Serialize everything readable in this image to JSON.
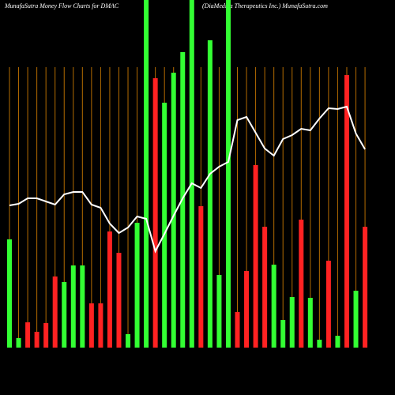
{
  "chart_data": {
    "type": "bar",
    "title": "MunafaSutra  Money Flow  Charts for DMAC",
    "subtitle": "(DiaMedica  Therapeutics Inc.) MunafaSutra.com",
    "categories": [
      null,
      null,
      null,
      null,
      null,
      null,
      null,
      null,
      null,
      null,
      null,
      null,
      null,
      null,
      null,
      null,
      null,
      null,
      null,
      null,
      null,
      null,
      null,
      null,
      null,
      null,
      null,
      null,
      null,
      null,
      null,
      null,
      null,
      null,
      null,
      null,
      null,
      null,
      null,
      null
    ],
    "series": [
      {
        "name": "Money Flow",
        "values": [
          137,
          12,
          32,
          20,
          31,
          90,
          83,
          104,
          104,
          56,
          56,
          147,
          120,
          17,
          158,
          440,
          341,
          310,
          348,
          374,
          440,
          179,
          389,
          92,
          440,
          45,
          97,
          231,
          153,
          105,
          35,
          64,
          162,
          63,
          10,
          110,
          15,
          345,
          72,
          153
        ],
        "colors": [
          "#33ff33",
          "#33ff33",
          "#ff2222",
          "#ff2222",
          "#ff2222",
          "#ff2222",
          "#33ff33",
          "#33ff33",
          "#33ff33",
          "#ff2222",
          "#ff2222",
          "#ff2222",
          "#ff2222",
          "#33ff33",
          "#33ff33",
          "#33ff33",
          "#ff2222",
          "#33ff33",
          "#33ff33",
          "#33ff33",
          "#33ff33",
          "#ff2222",
          "#33ff33",
          "#33ff33",
          "#33ff33",
          "#ff2222",
          "#ff2222",
          "#ff2222",
          "#ff2222",
          "#33ff33",
          "#33ff33",
          "#33ff33",
          "#ff2222",
          "#33ff33",
          "#33ff33",
          "#ff2222",
          "#33ff33",
          "#ff2222",
          "#33ff33",
          "#ff2222"
        ]
      },
      {
        "name": "Trend",
        "type": "line",
        "color": "#ffffff",
        "values": [
          180,
          182,
          189,
          189,
          185,
          181,
          194,
          197,
          197,
          181,
          177,
          157,
          145,
          152,
          166,
          163,
          122,
          144,
          167,
          189,
          208,
          202,
          220,
          229,
          235,
          288,
          292,
          272,
          252,
          243,
          264,
          269,
          277,
          275,
          290,
          303,
          302,
          305,
          271,
          251
        ]
      }
    ],
    "ylim": [
      0,
      440
    ],
    "grid": true,
    "grid_color": "#b36b00",
    "background": "#000000"
  }
}
